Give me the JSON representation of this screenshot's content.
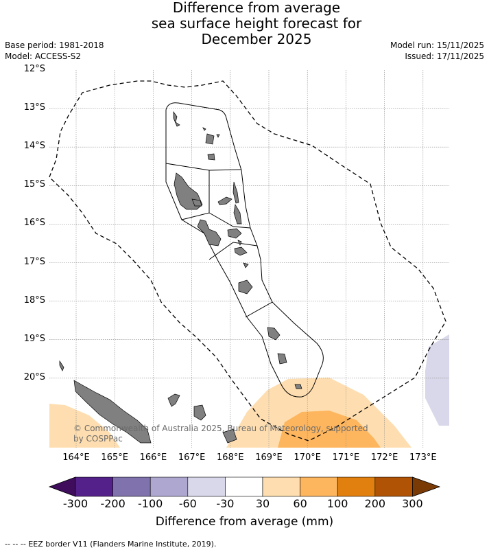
{
  "title": [
    "Difference from average",
    "sea surface height forecast for",
    "December 2025"
  ],
  "base_period": "Base period: 1981-2018",
  "model": "Model: ACCESS-S2",
  "model_run": "Model run: 15/11/2025",
  "issued": "Issued: 17/11/2025",
  "lat_labels": [
    "12°S",
    "13°S",
    "14°S",
    "15°S",
    "16°S",
    "17°S",
    "18°S",
    "19°S",
    "20°S"
  ],
  "lon_labels": [
    "164°E",
    "165°E",
    "166°E",
    "167°E",
    "168°E",
    "169°E",
    "170°E",
    "171°E",
    "172°E",
    "173°E"
  ],
  "credit": "© Commonwealth of Australia 2025, Bureau of Meteorology, supported by COSPPac",
  "colorbar": {
    "ticks": [
      "-300",
      "-200",
      "-100",
      "-60",
      "-30",
      "30",
      "60",
      "100",
      "200",
      "300"
    ],
    "colors": [
      "#3f0d5c",
      "#54218a",
      "#7f72ad",
      "#aea8d0",
      "#d8d8ea",
      "#ffffff",
      "#fedeb0",
      "#fdb55e",
      "#e2800f",
      "#b05305",
      "#7a3a06"
    ],
    "label": "Difference from average (mm)"
  },
  "legend": {
    "symbol": "-- -- --",
    "text": "EEZ border V11 (Flanders Marine Institute, 2019)."
  },
  "colors": {
    "land": "#808080",
    "grid": "#888888"
  }
}
